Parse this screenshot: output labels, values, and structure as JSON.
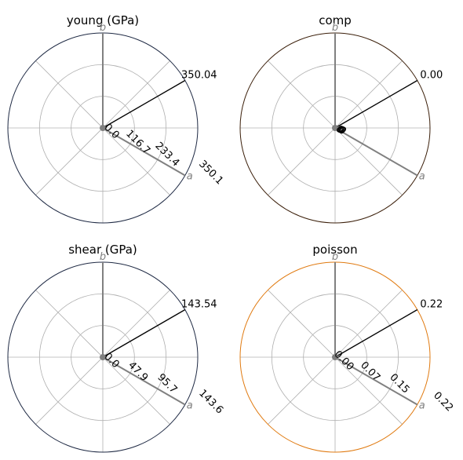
{
  "chart_data": [
    {
      "type": "polar",
      "title": "young (GPa)",
      "rlim": [
        0,
        350.1
      ],
      "radial_ticks": [
        "0.0",
        "116.7",
        "233.4",
        "350.1"
      ],
      "value_label": "350.04",
      "axis_labels": [
        "b",
        "a"
      ],
      "border_color": "#1f2a44",
      "grid": true
    },
    {
      "type": "polar",
      "title": "comp",
      "rlim": [
        0,
        0
      ],
      "radial_ticks": [
        "0",
        "0",
        "0",
        "0"
      ],
      "value_label": "0.00",
      "axis_labels": [
        "b",
        "a"
      ],
      "border_color": "#3b1f0a",
      "grid": true
    },
    {
      "type": "polar",
      "title": "shear (GPa)",
      "rlim": [
        0,
        143.6
      ],
      "radial_ticks": [
        "0.0",
        "47.9",
        "95.7",
        "143.6"
      ],
      "value_label": "143.54",
      "axis_labels": [
        "b",
        "a"
      ],
      "border_color": "#1f2a44",
      "grid": true
    },
    {
      "type": "polar",
      "title": "poisson",
      "rlim": [
        0,
        0.22
      ],
      "radial_ticks": [
        "0.00",
        "0.07",
        "0.15",
        "0.22"
      ],
      "value_label": "0.22",
      "axis_labels": [
        "b",
        "a"
      ],
      "border_color": "#e07a10",
      "grid": true
    }
  ]
}
